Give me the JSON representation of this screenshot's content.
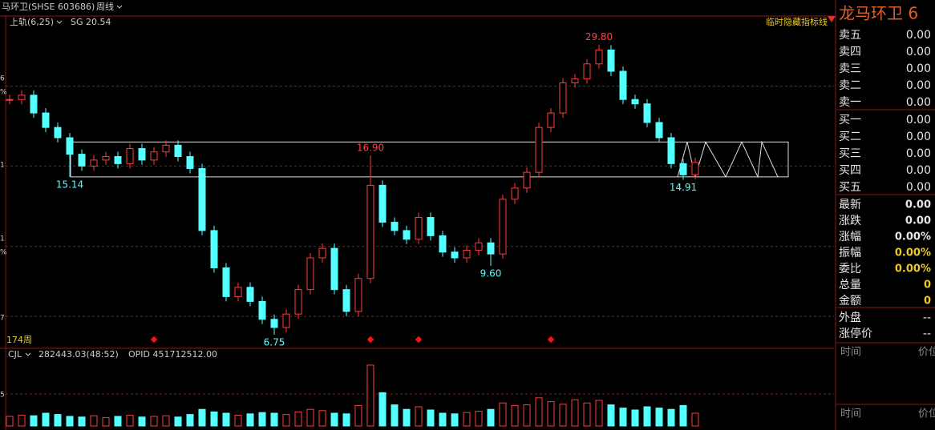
{
  "header": {
    "symbol": "马环卫(SHSE 603686)",
    "period": "周线",
    "indicator": "上轨(6,25)",
    "indicator_value": "SG 20.54",
    "hide_button": "临时隐藏指标线",
    "bar_count": "174周"
  },
  "left_axis_fragments": [
    "6",
    "%",
    "1",
    "1",
    "%",
    "7",
    "5"
  ],
  "chart_data": {
    "type": "candlestick",
    "log": true,
    "ylim": [
      6.37,
      34.5
    ],
    "dashed_levels": [
      24.1,
      16.0,
      10.6,
      7.41
    ],
    "closes": [
      22.5,
      23,
      21,
      19.5,
      18.5,
      17,
      16,
      16.5,
      16.8,
      16.2,
      17.5,
      16.5,
      17.2,
      17.8,
      16.8,
      15.8,
      11.5,
      9.5,
      8.2,
      8.6,
      8.0,
      7.3,
      7.0,
      7.5,
      8.5,
      10.0,
      10.5,
      8.5,
      7.6,
      9.0,
      14.5,
      12.0,
      11.5,
      11.0,
      12.3,
      11.2,
      10.3,
      10.0,
      10.4,
      10.8,
      10.2,
      13.5,
      14.3,
      15.5,
      19.5,
      21.0,
      24.5,
      25.0,
      27.0,
      29.0,
      26.0,
      22.5,
      22.0,
      20.0,
      18.5,
      16.2,
      15.3,
      16.3
    ],
    "annotations": [
      {
        "label": "29.80",
        "value": 29.8,
        "at": 49
      },
      {
        "label": "16.90",
        "value": 16.9,
        "at": 30
      },
      {
        "label": "15.14",
        "value": 15.14,
        "at": 5
      },
      {
        "label": "9.60",
        "value": 9.6,
        "at": 40
      },
      {
        "label": "6.75",
        "value": 6.75,
        "at": 22
      },
      {
        "label": "14.91",
        "value": 14.91,
        "at": 56
      }
    ],
    "box": {
      "top": 18.1,
      "bottom": 15.14
    },
    "signals": [
      12,
      30,
      34,
      45
    ]
  },
  "volume": {
    "label": "CJL",
    "value": "282443.03(48:52)",
    "opid": "OPID 451712512.00",
    "ylim": [
      0,
      1000000
    ],
    "dashed_level": 500000,
    "values": [
      150000,
      170000,
      160000,
      200000,
      180000,
      150000,
      140000,
      160000,
      130000,
      150000,
      170000,
      140000,
      150000,
      160000,
      140000,
      180000,
      260000,
      220000,
      200000,
      170000,
      190000,
      210000,
      200000,
      180000,
      220000,
      260000,
      240000,
      200000,
      190000,
      320000,
      950000,
      520000,
      330000,
      260000,
      300000,
      250000,
      200000,
      190000,
      210000,
      230000,
      260000,
      360000,
      320000,
      330000,
      440000,
      380000,
      340000,
      410000,
      360000,
      400000,
      330000,
      280000,
      250000,
      300000,
      280000,
      260000,
      320000,
      200000
    ]
  },
  "quote": {
    "title": "龙马环卫 6",
    "asks": [
      {
        "label": "卖五",
        "value": "0.00"
      },
      {
        "label": "卖四",
        "value": "0.00"
      },
      {
        "label": "卖三",
        "value": "0.00"
      },
      {
        "label": "卖二",
        "value": "0.00"
      },
      {
        "label": "卖一",
        "value": "0.00"
      }
    ],
    "bids": [
      {
        "label": "买一",
        "value": "0.00"
      },
      {
        "label": "买二",
        "value": "0.00"
      },
      {
        "label": "买三",
        "value": "0.00"
      },
      {
        "label": "买四",
        "value": "0.00"
      },
      {
        "label": "买五",
        "value": "0.00"
      }
    ],
    "stats": [
      {
        "label": "最新",
        "value": "0.00"
      },
      {
        "label": "涨跌",
        "value": "0.00"
      },
      {
        "label": "涨幅",
        "value": "0.00%"
      },
      {
        "label": "振幅",
        "value": "0.00%"
      },
      {
        "label": "委比",
        "value": "0.00%"
      },
      {
        "label": "总量",
        "value": "0"
      },
      {
        "label": "金额",
        "value": "0"
      }
    ],
    "extra": [
      {
        "label": "外盘",
        "value": "--"
      },
      {
        "label": "涨停价",
        "value": "--"
      }
    ],
    "ticks_header": [
      {
        "time": "时间",
        "price": "价位"
      },
      {
        "time": "时间",
        "price": "价位"
      }
    ]
  }
}
